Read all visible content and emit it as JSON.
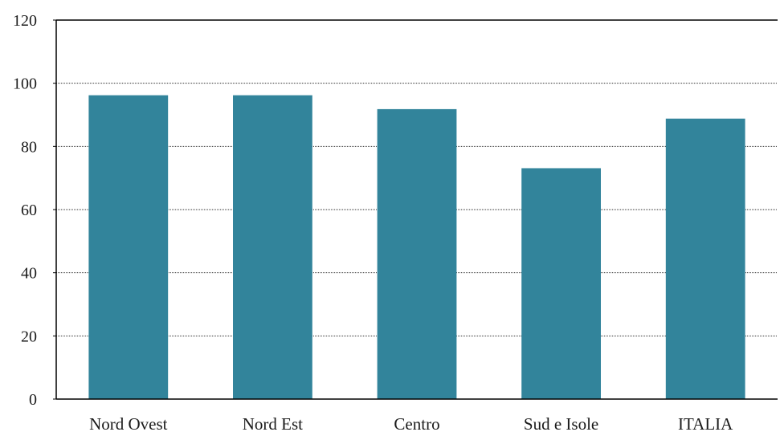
{
  "chart_data": {
    "type": "bar",
    "title": "",
    "xlabel": "",
    "ylabel": "",
    "categories": [
      "Nord Ovest",
      "Nord Est",
      "Centro",
      "Sud e Isole",
      "ITALIA"
    ],
    "values": [
      96.2,
      96.2,
      91.8,
      73.1,
      88.8
    ],
    "ylim": [
      0,
      120
    ],
    "yticks": [
      0,
      20,
      40,
      60,
      80,
      100,
      120
    ],
    "ytick_labels": [
      "0",
      "20",
      "40",
      "60",
      "80",
      "100",
      "120"
    ],
    "grid": true,
    "legend": "none",
    "colors": {
      "bar": "#32849b"
    }
  }
}
